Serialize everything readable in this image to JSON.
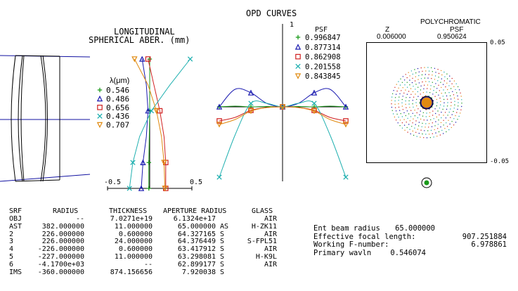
{
  "lsa": {
    "title_line1": "LONGITUDINAL",
    "title_line2": "SPHERICAL ABER. (mm)",
    "legend_header": "λ(μm)",
    "wavelengths": [
      {
        "label": "0.546",
        "color": "#1a9a1a",
        "marker": "plus"
      },
      {
        "label": "0.486",
        "color": "#1a1ab0",
        "marker": "triangle"
      },
      {
        "label": "0.656",
        "color": "#d02020",
        "marker": "square"
      },
      {
        "label": "0.436",
        "color": "#20b0b0",
        "marker": "cross"
      },
      {
        "label": "0.707",
        "color": "#e08a10",
        "marker": "triangle-down"
      }
    ],
    "axis_min_label": "-0.5",
    "axis_max_label": "0.5"
  },
  "opd": {
    "title": "OPD CURVES",
    "axis_top_label": "1",
    "psf_header": "PSF",
    "psf_values": [
      "0.996847",
      "0.877314",
      "0.862908",
      "0.201558",
      "0.843845"
    ]
  },
  "spot": {
    "header": "POLYCHROMATIC",
    "z_label": "Z",
    "psf_label": "PSF",
    "z_value": "0.006000",
    "psf_value": "0.950624",
    "axis_top": "0.05",
    "axis_bottom": "-0.05"
  },
  "table": {
    "headers": [
      "SRF",
      "RADIUS",
      "THICKNESS",
      "APERTURE RADIUS",
      "GLASS"
    ],
    "rows": [
      {
        "srf": "OBJ",
        "radius": "--",
        "thickness": "7.0271e+19",
        "aperture": "6.1324e+17",
        "flag": "",
        "glass": "AIR"
      },
      {
        "srf": "AST",
        "radius": "382.000000",
        "thickness": "11.000000",
        "aperture": "65.000000",
        "flag": "AS",
        "glass": "H-ZK11"
      },
      {
        "srf": "2",
        "radius": "226.000000",
        "thickness": "0.600000",
        "aperture": "64.327165",
        "flag": "S",
        "glass": "AIR"
      },
      {
        "srf": "3",
        "radius": "226.000000",
        "thickness": "24.000000",
        "aperture": "64.376449",
        "flag": "S",
        "glass": "S-FPL51"
      },
      {
        "srf": "4",
        "radius": "-226.000000",
        "thickness": "0.600000",
        "aperture": "63.417912",
        "flag": "S",
        "glass": "AIR"
      },
      {
        "srf": "5",
        "radius": "-227.000000",
        "thickness": "11.000000",
        "aperture": "63.298081",
        "flag": "S",
        "glass": "H-K9L"
      },
      {
        "srf": "6",
        "radius": "-4.1700e+03",
        "thickness": "--",
        "aperture": "62.899177",
        "flag": "S",
        "glass": "AIR"
      },
      {
        "srf": "IMS",
        "radius": "-360.000000",
        "thickness": "874.156656",
        "aperture": "7.920038",
        "flag": "S",
        "glass": ""
      }
    ]
  },
  "system": {
    "lines": [
      {
        "label": "Ent beam radius",
        "value": "65.000000"
      },
      {
        "label": "Effective focal length:",
        "value": "907.251884"
      },
      {
        "label": "Working F-number:",
        "value": "6.978861"
      },
      {
        "label": "Primary wavln",
        "value": "0.546074"
      }
    ]
  },
  "chart_data": [
    {
      "type": "line",
      "title": "LONGITUDINAL SPHERICAL ABER. (mm)",
      "xlabel": "",
      "ylabel": "",
      "xlim": [
        -0.5,
        0.5
      ],
      "ylim": [
        0,
        1
      ],
      "series": [
        {
          "name": "0.546",
          "x": [
            -0.01,
            -0.01,
            -0.005,
            0.0,
            0.0,
            0.0
          ],
          "y": [
            0.0,
            0.2,
            0.4,
            0.6,
            0.8,
            1.0
          ]
        },
        {
          "name": "0.486",
          "x": [
            -0.1,
            -0.08,
            -0.04,
            -0.02,
            -0.04,
            -0.09
          ],
          "y": [
            0.0,
            0.2,
            0.4,
            0.6,
            0.8,
            1.0
          ]
        },
        {
          "name": "0.656",
          "x": [
            0.19,
            0.19,
            0.17,
            0.12,
            0.05,
            -0.02
          ],
          "y": [
            0.0,
            0.2,
            0.4,
            0.6,
            0.8,
            1.0
          ]
        },
        {
          "name": "0.436",
          "x": [
            -0.24,
            -0.2,
            -0.12,
            0.02,
            0.24,
            0.48
          ],
          "y": [
            0.0,
            0.2,
            0.4,
            0.6,
            0.8,
            1.0
          ]
        },
        {
          "name": "0.707",
          "x": [
            0.18,
            0.17,
            0.14,
            0.08,
            -0.02,
            -0.18
          ],
          "y": [
            0.0,
            0.2,
            0.4,
            0.6,
            0.8,
            1.0
          ]
        }
      ]
    },
    {
      "type": "line",
      "title": "OPD CURVES",
      "xlim": [
        -1,
        1
      ],
      "ylim": [
        -1,
        1
      ],
      "series": [
        {
          "name": "0.996847",
          "x": [
            -1,
            -0.75,
            -0.5,
            -0.25,
            0,
            0.25,
            0.5,
            0.75,
            1
          ],
          "y": [
            0.0,
            0.01,
            0.0,
            0.005,
            0.0,
            0.005,
            0.0,
            0.01,
            0.0
          ]
        },
        {
          "name": "0.877314",
          "x": [
            -1,
            -0.75,
            -0.5,
            -0.25,
            0,
            0.25,
            0.5,
            0.75,
            1
          ],
          "y": [
            0.0,
            0.25,
            0.2,
            0.05,
            0.0,
            0.05,
            0.2,
            0.25,
            0.0
          ]
        },
        {
          "name": "0.862908",
          "x": [
            -1,
            -0.75,
            -0.5,
            -0.25,
            0,
            0.25,
            0.5,
            0.75,
            1
          ],
          "y": [
            -0.2,
            -0.15,
            -0.05,
            -0.01,
            0.0,
            -0.01,
            -0.05,
            -0.15,
            -0.2
          ]
        },
        {
          "name": "0.201558",
          "x": [
            -1,
            -0.75,
            -0.5,
            -0.25,
            0,
            0.25,
            0.5,
            0.75,
            1
          ],
          "y": [
            -1.0,
            -0.4,
            0.05,
            0.05,
            0.0,
            0.05,
            0.05,
            -0.4,
            -1.0
          ]
        },
        {
          "name": "0.843845",
          "x": [
            -1,
            -0.75,
            -0.5,
            -0.25,
            0,
            0.25,
            0.5,
            0.75,
            1
          ],
          "y": [
            -0.25,
            -0.18,
            -0.06,
            -0.01,
            0.0,
            -0.01,
            -0.06,
            -0.18,
            -0.25
          ]
        }
      ]
    }
  ]
}
